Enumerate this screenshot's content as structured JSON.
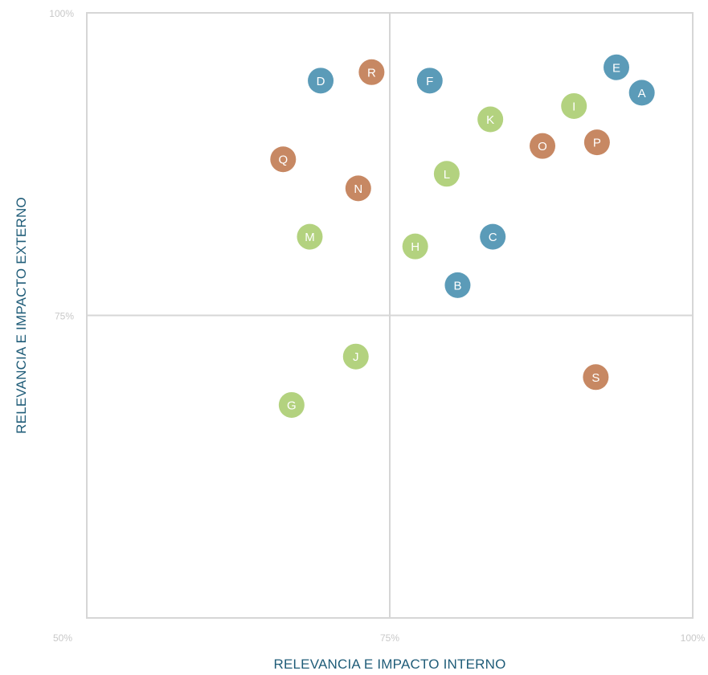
{
  "chart_data": {
    "type": "scatter",
    "title": "",
    "xlabel": "RELEVANCIA E IMPACTO INTERNO",
    "ylabel": "RELEVANCIA E IMPACTO EXTERNO",
    "xlim": [
      50,
      100
    ],
    "ylim": [
      50,
      100
    ],
    "x_ticks": [
      {
        "value": 50,
        "label": "50%"
      },
      {
        "value": 75,
        "label": "75%"
      },
      {
        "value": 100,
        "label": "100%"
      }
    ],
    "y_ticks": [
      {
        "value": 75,
        "label": "75%"
      },
      {
        "value": 100,
        "label": "100%"
      }
    ],
    "quadrant_dividers": {
      "x": 75,
      "y": 75
    },
    "grid": false,
    "group_colors": {
      "blue": "#5b9bb8",
      "orange": "#c78863",
      "green": "#b3d27f"
    },
    "points": [
      {
        "label": "A",
        "x": 95.8,
        "y": 93.4,
        "group": "blue"
      },
      {
        "label": "B",
        "x": 80.6,
        "y": 77.5,
        "group": "blue"
      },
      {
        "label": "C",
        "x": 83.5,
        "y": 81.5,
        "group": "blue"
      },
      {
        "label": "D",
        "x": 69.3,
        "y": 94.4,
        "group": "blue"
      },
      {
        "label": "E",
        "x": 93.7,
        "y": 95.5,
        "group": "blue"
      },
      {
        "label": "F",
        "x": 78.3,
        "y": 94.4,
        "group": "blue"
      },
      {
        "label": "G",
        "x": 66.9,
        "y": 67.6,
        "group": "green"
      },
      {
        "label": "H",
        "x": 77.1,
        "y": 80.7,
        "group": "green"
      },
      {
        "label": "I",
        "x": 90.2,
        "y": 92.3,
        "group": "green"
      },
      {
        "label": "J",
        "x": 72.2,
        "y": 71.6,
        "group": "green"
      },
      {
        "label": "K",
        "x": 83.3,
        "y": 91.2,
        "group": "green"
      },
      {
        "label": "L",
        "x": 79.7,
        "y": 86.7,
        "group": "green"
      },
      {
        "label": "M",
        "x": 68.4,
        "y": 81.5,
        "group": "green"
      },
      {
        "label": "N",
        "x": 72.4,
        "y": 85.5,
        "group": "orange"
      },
      {
        "label": "O",
        "x": 87.6,
        "y": 89.0,
        "group": "orange"
      },
      {
        "label": "P",
        "x": 92.1,
        "y": 89.3,
        "group": "orange"
      },
      {
        "label": "Q",
        "x": 66.2,
        "y": 87.9,
        "group": "orange"
      },
      {
        "label": "R",
        "x": 73.5,
        "y": 95.1,
        "group": "orange"
      },
      {
        "label": "S",
        "x": 92.0,
        "y": 69.9,
        "group": "orange"
      }
    ]
  }
}
